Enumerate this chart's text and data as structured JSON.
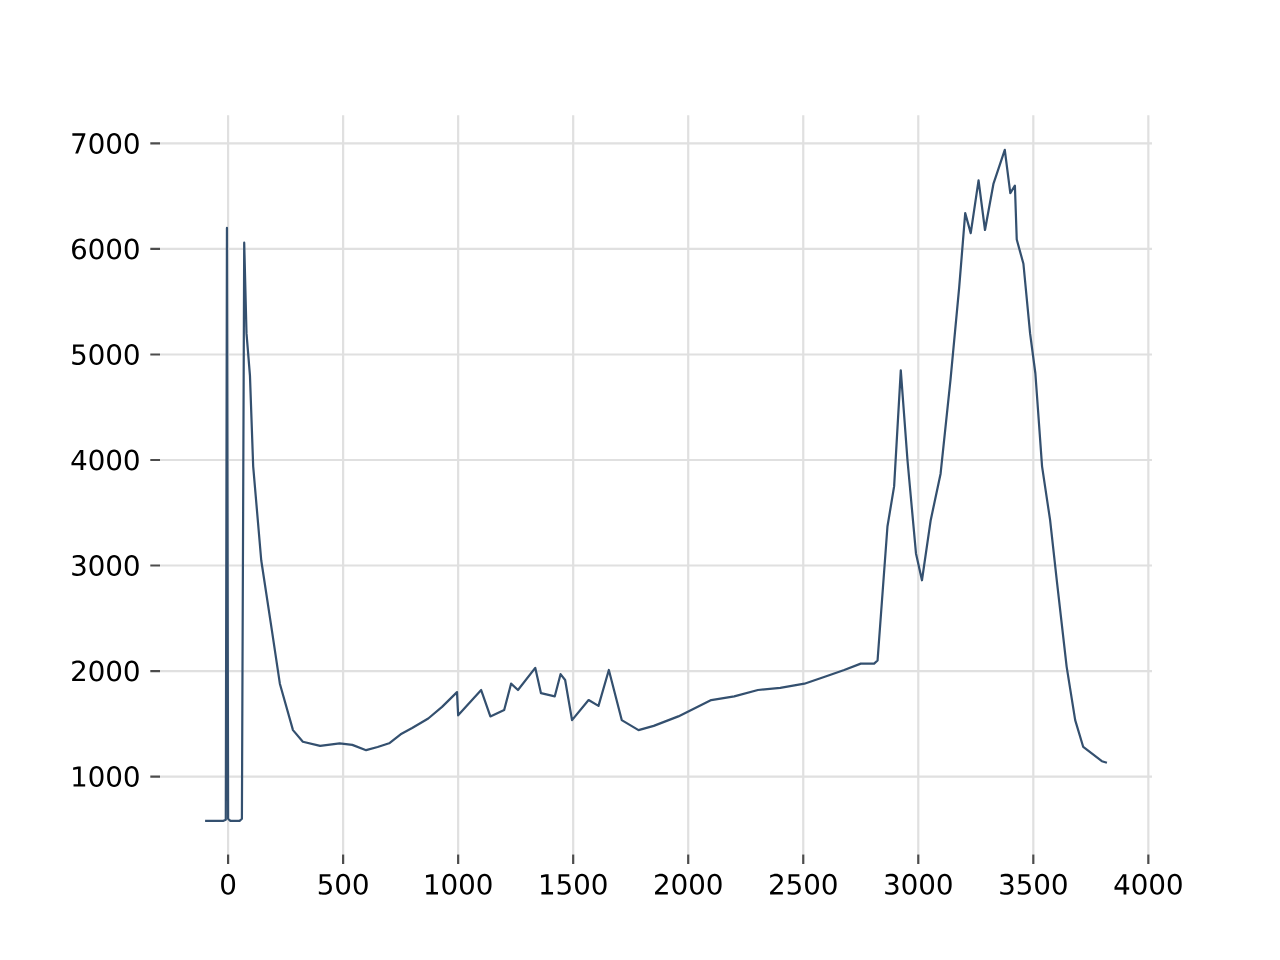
{
  "chart_data": {
    "type": "line",
    "color": "#34506f",
    "grid": true,
    "marker": "none",
    "line_style": "solid",
    "x": [
      -100,
      -20,
      -10,
      -5,
      0,
      10,
      30,
      50,
      60,
      70,
      80,
      95,
      109,
      144,
      190,
      225,
      282,
      325,
      400,
      485,
      540,
      600,
      650,
      700,
      750,
      800,
      870,
      930,
      995,
      1000,
      1050,
      1100,
      1140,
      1200,
      1230,
      1260,
      1335,
      1360,
      1420,
      1445,
      1465,
      1495,
      1567,
      1610,
      1655,
      1711,
      1784,
      1850,
      1957,
      2100,
      2200,
      2303,
      2400,
      2505,
      2600,
      2678,
      2750,
      2808,
      2823,
      2866,
      2895,
      2924,
      2953,
      2990,
      3016,
      3054,
      3097,
      3140,
      3178,
      3204,
      3228,
      3262,
      3290,
      3327,
      3376,
      3400,
      3420,
      3428,
      3457,
      3486,
      3509,
      3538,
      3573,
      3602,
      3645,
      3682,
      3717,
      3798,
      3820
    ],
    "values": [
      580,
      580,
      590,
      6200,
      600,
      580,
      580,
      580,
      600,
      6060,
      5200,
      4800,
      3940,
      3050,
      2390,
      1880,
      1440,
      1330,
      1290,
      1315,
      1300,
      1250,
      1280,
      1315,
      1400,
      1460,
      1550,
      1660,
      1800,
      1580,
      1700,
      1820,
      1570,
      1630,
      1880,
      1820,
      2030,
      1790,
      1760,
      1970,
      1915,
      1535,
      1725,
      1670,
      2010,
      1535,
      1440,
      1480,
      1570,
      1725,
      1760,
      1820,
      1840,
      1880,
      1950,
      2010,
      2070,
      2070,
      2100,
      3370,
      3750,
      4850,
      4000,
      3115,
      2860,
      3430,
      3870,
      4760,
      5640,
      6340,
      6150,
      6650,
      6180,
      6620,
      6940,
      6530,
      6600,
      6090,
      5860,
      5200,
      4820,
      3940,
      3430,
      2860,
      2040,
      1535,
      1280,
      1145,
      1130
    ],
    "xlim": [
      -296,
      4016
    ],
    "ylim": [
      262,
      7268
    ],
    "xticks": [
      0,
      500,
      1000,
      1500,
      2000,
      2500,
      3000,
      3500,
      4000
    ],
    "yticks": [
      1000,
      2000,
      3000,
      4000,
      5000,
      6000,
      7000
    ]
  }
}
